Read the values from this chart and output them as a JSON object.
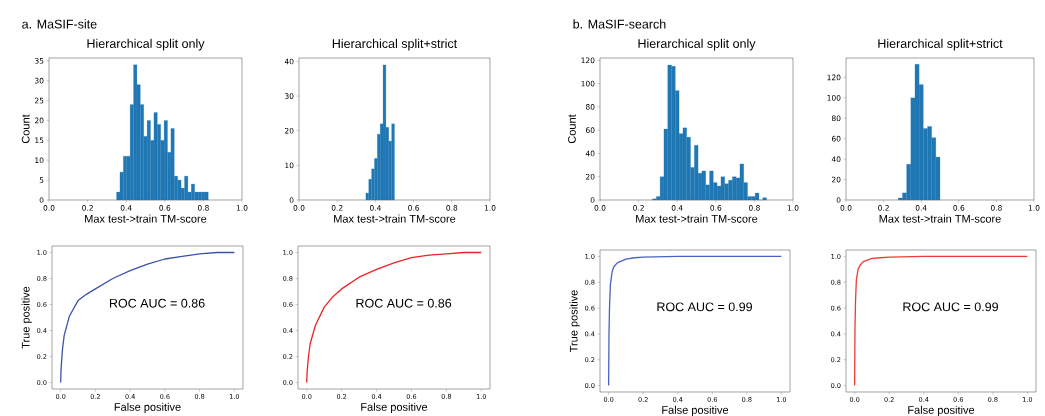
{
  "chart_data": [
    {
      "type": "histogram",
      "title": "Hierarchical split only",
      "xlabel": "Max test->train TM-score",
      "ylabel": "Count",
      "annotations": [
        "a. MaSIF-site"
      ],
      "color": "#1f77b4",
      "bins": [
        0.35,
        0.3676,
        0.3852,
        0.4028,
        0.4204,
        0.438,
        0.4556,
        0.4732,
        0.4908,
        0.5084,
        0.526,
        0.5436,
        0.5612,
        0.5788,
        0.5964,
        0.614,
        0.6316,
        0.6492,
        0.6668,
        0.6844,
        0.702,
        0.7196,
        0.7372,
        0.7548,
        0.7724,
        0.79,
        0.8076,
        0.8252
      ],
      "values": [
        2,
        7,
        11,
        11,
        24,
        34,
        29,
        24,
        16,
        20,
        15,
        22,
        19,
        15,
        20,
        12,
        18,
        6,
        5,
        3,
        6,
        2,
        4,
        2,
        2,
        2,
        2
      ],
      "xlim": [
        0,
        1
      ],
      "ylim": [
        0,
        35.7
      ],
      "xticks": [
        {
          "value": 0,
          "label": "0.0"
        },
        {
          "value": 0.2,
          "label": "0.2"
        },
        {
          "value": 0.4,
          "label": "0.4"
        },
        {
          "value": 0.6,
          "label": "0.6"
        },
        {
          "value": 0.8,
          "label": "0.8"
        },
        {
          "value": 1,
          "label": "1.0"
        }
      ],
      "yticks": [
        0,
        5,
        10,
        15,
        20,
        25,
        30,
        35
      ]
    },
    {
      "type": "histogram",
      "title": "Hierarchical split+strict",
      "xlabel": "Max test->train TM-score",
      "color": "#1f77b4",
      "bins": [
        0.35,
        0.365,
        0.38,
        0.395,
        0.41,
        0.425,
        0.44,
        0.455,
        0.47,
        0.485,
        0.5
      ],
      "values": [
        2,
        6,
        9,
        12,
        19,
        22,
        39,
        21,
        17,
        22
      ],
      "xlim": [
        0,
        1
      ],
      "ylim": [
        0,
        41
      ],
      "xticks": [
        {
          "value": 0,
          "label": "0.0"
        },
        {
          "value": 0.2,
          "label": "0.2"
        },
        {
          "value": 0.4,
          "label": "0.4"
        },
        {
          "value": 0.6,
          "label": "0.6"
        },
        {
          "value": 0.8,
          "label": "0.8"
        },
        {
          "value": 1,
          "label": "1.0"
        }
      ],
      "yticks": [
        0,
        10,
        20,
        30,
        40
      ]
    },
    {
      "type": "histogram",
      "title": "Hierarchical split only",
      "xlabel": "Max test->train TM-score",
      "ylabel": "Count",
      "annotations": [
        "b. MaSIF-search"
      ],
      "color": "#1f77b4",
      "bins": [
        0.272,
        0.2917,
        0.3114,
        0.3311,
        0.3508,
        0.3705,
        0.3902,
        0.4099,
        0.4296,
        0.4493,
        0.469,
        0.4887,
        0.5084,
        0.5281,
        0.5478,
        0.5675,
        0.5872,
        0.6069,
        0.6266,
        0.6463,
        0.666,
        0.6857,
        0.7054,
        0.7251,
        0.7448,
        0.7645,
        0.7842,
        0.8039,
        0.8236,
        0.8433,
        0.863
      ],
      "values": [
        1,
        3,
        20,
        61,
        116,
        115,
        94,
        57,
        62,
        54,
        28,
        47,
        23,
        25,
        13,
        25,
        15,
        12,
        20,
        14,
        17,
        20,
        19,
        31,
        15,
        3,
        3,
        6,
        0,
        2
      ],
      "xlim": [
        0,
        1
      ],
      "ylim": [
        0,
        122
      ],
      "xticks": [
        {
          "value": 0,
          "label": "0.0"
        },
        {
          "value": 0.2,
          "label": "0.2"
        },
        {
          "value": 0.4,
          "label": "0.4"
        },
        {
          "value": 0.6,
          "label": "0.6"
        },
        {
          "value": 0.8,
          "label": "0.8"
        },
        {
          "value": 1,
          "label": "1.0"
        }
      ],
      "yticks": [
        0,
        20,
        40,
        60,
        80,
        100,
        120
      ]
    },
    {
      "type": "histogram",
      "title": "Hierarchical split+strict",
      "xlabel": "Max test->train TM-score",
      "color": "#1f77b4",
      "bins": [
        0.278,
        0.3002,
        0.3224,
        0.3446,
        0.3668,
        0.389,
        0.4112,
        0.4334,
        0.4556,
        0.4778,
        0.5
      ],
      "values": [
        2,
        7,
        35,
        100,
        133,
        113,
        70,
        72,
        61,
        42
      ],
      "xlim": [
        0,
        1
      ],
      "ylim": [
        0,
        139
      ],
      "xticks": [
        {
          "value": 0,
          "label": "0.0"
        },
        {
          "value": 0.2,
          "label": "0.2"
        },
        {
          "value": 0.4,
          "label": "0.4"
        },
        {
          "value": 0.6,
          "label": "0.6"
        },
        {
          "value": 0.8,
          "label": "0.8"
        },
        {
          "value": 1,
          "label": "1.0"
        }
      ],
      "yticks": [
        0,
        20,
        40,
        60,
        80,
        100,
        120
      ]
    },
    {
      "type": "line",
      "xlabel": "False positive",
      "ylabel": "True positive",
      "annotations": [
        "ROC AUC = 0.86"
      ],
      "color": "#3a52a9",
      "x": [
        0,
        0.002,
        0.01,
        0.02,
        0.05,
        0.1,
        0.15,
        0.2,
        0.3,
        0.4,
        0.5,
        0.6,
        0.7,
        0.8,
        0.9,
        1.0
      ],
      "values": [
        0,
        0.1,
        0.25,
        0.36,
        0.51,
        0.63,
        0.68,
        0.72,
        0.8,
        0.86,
        0.91,
        0.95,
        0.97,
        0.99,
        1.0,
        1.0
      ],
      "xlim": [
        -0.05,
        1.05
      ],
      "ylim": [
        -0.05,
        1.05
      ],
      "xticks": [
        {
          "value": 0,
          "label": "0.0"
        },
        {
          "value": 0.2,
          "label": "0.2"
        },
        {
          "value": 0.4,
          "label": "0.4"
        },
        {
          "value": 0.6,
          "label": "0.6"
        },
        {
          "value": 0.8,
          "label": "0.8"
        },
        {
          "value": 1,
          "label": "1.0"
        }
      ],
      "yticks": [
        {
          "value": 0,
          "label": "0.0"
        },
        {
          "value": 0.2,
          "label": "0.2"
        },
        {
          "value": 0.4,
          "label": "0.4"
        },
        {
          "value": 0.6,
          "label": "0.6"
        },
        {
          "value": 0.8,
          "label": "0.8"
        },
        {
          "value": 1,
          "label": "1.0"
        }
      ]
    },
    {
      "type": "line",
      "xlabel": "False positive",
      "annotations": [
        "ROC AUC = 0.86"
      ],
      "color": "#ec2324",
      "x": [
        0,
        0.002,
        0.01,
        0.02,
        0.05,
        0.1,
        0.15,
        0.2,
        0.3,
        0.4,
        0.5,
        0.6,
        0.7,
        0.8,
        0.9,
        1.0
      ],
      "values": [
        0,
        0.08,
        0.2,
        0.3,
        0.44,
        0.58,
        0.66,
        0.72,
        0.81,
        0.87,
        0.92,
        0.96,
        0.98,
        0.99,
        1.0,
        1.0
      ],
      "xlim": [
        -0.05,
        1.05
      ],
      "ylim": [
        -0.05,
        1.05
      ],
      "xticks": [
        {
          "value": 0,
          "label": "0.0"
        },
        {
          "value": 0.2,
          "label": "0.2"
        },
        {
          "value": 0.4,
          "label": "0.4"
        },
        {
          "value": 0.6,
          "label": "0.6"
        },
        {
          "value": 0.8,
          "label": "0.8"
        },
        {
          "value": 1,
          "label": "1.0"
        }
      ],
      "yticks": [
        {
          "value": 0,
          "label": "0.0"
        },
        {
          "value": 0.2,
          "label": "0.2"
        },
        {
          "value": 0.4,
          "label": "0.4"
        },
        {
          "value": 0.6,
          "label": "0.6"
        },
        {
          "value": 0.8,
          "label": "0.8"
        },
        {
          "value": 1,
          "label": "1.0"
        }
      ]
    },
    {
      "type": "line",
      "xlabel": "False positive",
      "ylabel": "True positive",
      "annotations": [
        "ROC AUC = 0.99"
      ],
      "color": "#4a63c0",
      "x": [
        0,
        0.002,
        0.005,
        0.01,
        0.02,
        0.03,
        0.05,
        0.1,
        0.15,
        0.2,
        0.4,
        0.6,
        0.8,
        1.0
      ],
      "values": [
        0,
        0.4,
        0.6,
        0.78,
        0.88,
        0.92,
        0.95,
        0.98,
        0.99,
        0.995,
        1.0,
        1.0,
        1.0,
        1.0
      ],
      "xlim": [
        -0.05,
        1.05
      ],
      "ylim": [
        -0.05,
        1.05
      ],
      "xticks": [
        {
          "value": 0,
          "label": "0.0"
        },
        {
          "value": 0.2,
          "label": "0.2"
        },
        {
          "value": 0.4,
          "label": "0.4"
        },
        {
          "value": 0.6,
          "label": "0.6"
        },
        {
          "value": 0.8,
          "label": "0.8"
        },
        {
          "value": 1,
          "label": "1.0"
        }
      ],
      "yticks": [
        {
          "value": 0,
          "label": "0.0"
        },
        {
          "value": 0.2,
          "label": "0.2"
        },
        {
          "value": 0.4,
          "label": "0.4"
        },
        {
          "value": 0.6,
          "label": "0.6"
        },
        {
          "value": 0.8,
          "label": "0.8"
        },
        {
          "value": 1,
          "label": "1.0"
        }
      ]
    },
    {
      "type": "line",
      "xlabel": "False positive",
      "annotations": [
        "ROC AUC = 0.99"
      ],
      "color": "#ee3b34",
      "x": [
        0,
        0.002,
        0.005,
        0.01,
        0.02,
        0.03,
        0.05,
        0.1,
        0.15,
        0.2,
        0.4,
        0.6,
        0.8,
        1.0
      ],
      "values": [
        0,
        0.45,
        0.65,
        0.82,
        0.9,
        0.93,
        0.96,
        0.985,
        0.99,
        0.995,
        1.0,
        1.0,
        1.0,
        1.0
      ],
      "xlim": [
        -0.05,
        1.05
      ],
      "ylim": [
        -0.05,
        1.05
      ],
      "xticks": [
        {
          "value": 0,
          "label": "0.0"
        },
        {
          "value": 0.2,
          "label": "0.2"
        },
        {
          "value": 0.4,
          "label": "0.4"
        },
        {
          "value": 0.6,
          "label": "0.6"
        },
        {
          "value": 0.8,
          "label": "0.8"
        },
        {
          "value": 1,
          "label": "1.0"
        }
      ],
      "yticks": [
        {
          "value": 0,
          "label": "0.0"
        },
        {
          "value": 0.2,
          "label": "0.2"
        },
        {
          "value": 0.4,
          "label": "0.4"
        },
        {
          "value": 0.6,
          "label": "0.6"
        },
        {
          "value": 0.8,
          "label": "0.8"
        },
        {
          "value": 1,
          "label": "1.0"
        }
      ]
    }
  ]
}
